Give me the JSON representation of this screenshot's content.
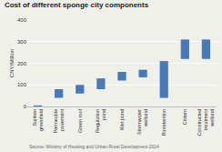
{
  "chart_data": {
    "type": "bar",
    "title": "Cost of different sponge city components",
    "ylabel": "CNY/Million",
    "source": "Source: Ministry of Housing and Urban-Rural Development 2014",
    "categories": [
      "Sunken\ngreenfield",
      "Permeable\npavement",
      "Green roof",
      "Regulation\npond",
      "Wet pond",
      "Stormwater\nwetland",
      "Bioretention",
      "Cistern",
      "Constructed\ntreatment\nwetland"
    ],
    "low": [
      0,
      40,
      60,
      80,
      120,
      135,
      40,
      220,
      220
    ],
    "high": [
      5,
      80,
      100,
      130,
      160,
      170,
      210,
      310,
      310
    ],
    "color": "#4a7ab5",
    "background": "#f0f0eb",
    "ylim": [
      0,
      400
    ],
    "yticks": [
      0,
      100,
      200,
      300,
      400
    ],
    "grid": true
  }
}
